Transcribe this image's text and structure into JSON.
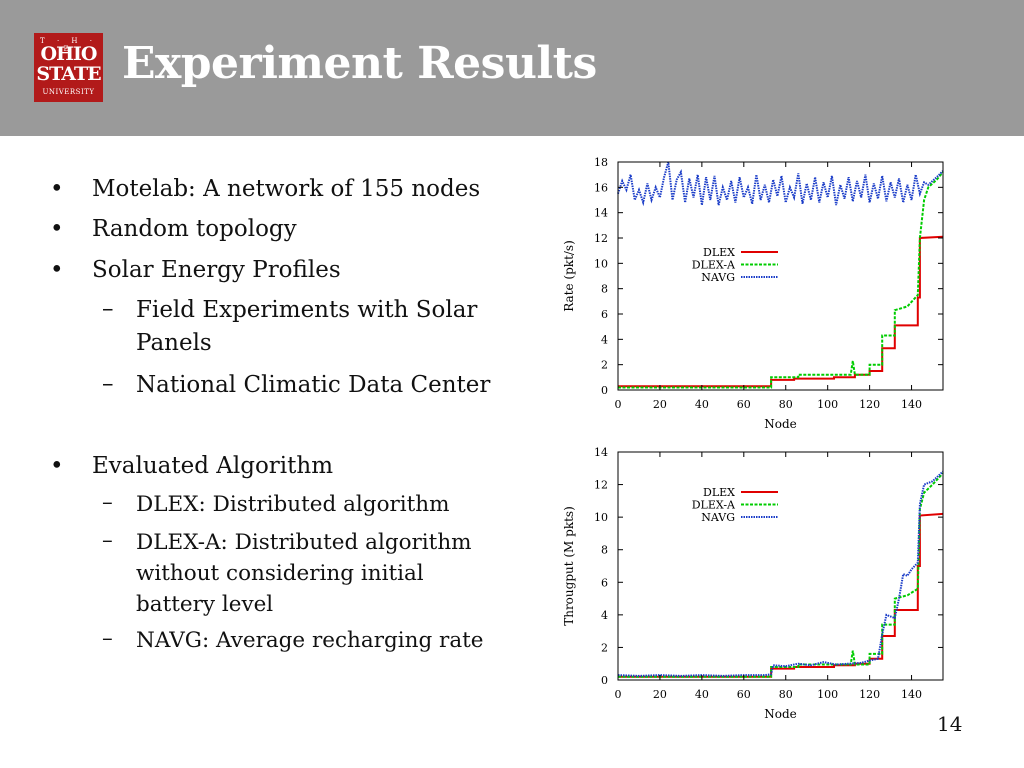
{
  "header": {
    "logo": {
      "line1": "T · H · E",
      "line2": "OHIO",
      "line3": "STATE",
      "line4": "UNIVERSITY"
    },
    "title": "Experiment Results"
  },
  "bullets": [
    {
      "text": "Motelab: A network of 155 nodes"
    },
    {
      "text": "Random topology"
    },
    {
      "text": "Solar Energy Profiles"
    },
    {
      "sub1": "Field Experiments with Solar",
      "sub2": "Panels"
    },
    {
      "text": "National Climatic Data Center"
    },
    {
      "text": "Evaluated Algorithm"
    },
    {
      "text": "DLEX: Distributed algorithm"
    },
    {
      "sub1": "DLEX-A: Distributed algorithm",
      "sub2": "without considering initial",
      "sub3": "battery level"
    },
    {
      "text": "NAVG: Average recharging rate"
    }
  ],
  "bullet_symbol": "•",
  "dash_symbol": "–",
  "page_number": "14",
  "colors": {
    "header": "#9a9a9a",
    "logo": "#b21a1a",
    "dlex": "#e00000",
    "dlexa": "#00cc00",
    "navg": "#1a3cc8"
  },
  "chart_data": [
    {
      "type": "line",
      "xlabel": "Node",
      "ylabel": "Rate (pkt/s)",
      "xlim": [
        0,
        155
      ],
      "ylim": [
        0,
        18
      ],
      "xticks": [
        "0",
        "20",
        "40",
        "60",
        "80",
        "100",
        "120",
        "140"
      ],
      "yticks": [
        "0",
        "2",
        "4",
        "6",
        "8",
        "10",
        "12",
        "14",
        "16",
        "18"
      ],
      "legend": "top-center",
      "series": [
        {
          "name": "DLEX",
          "points": [
            [
              0,
              0.3
            ],
            [
              73,
              0.3
            ],
            [
              73,
              0.8
            ],
            [
              84,
              0.8
            ],
            [
              84,
              0.9
            ],
            [
              103,
              0.9
            ],
            [
              103,
              1.0
            ],
            [
              113,
              1.0
            ],
            [
              113,
              1.2
            ],
            [
              120,
              1.2
            ],
            [
              120,
              1.5
            ],
            [
              126,
              1.5
            ],
            [
              126,
              3.3
            ],
            [
              132,
              3.3
            ],
            [
              132,
              5.1
            ],
            [
              143,
              5.1
            ],
            [
              143,
              7.3
            ],
            [
              144,
              7.3
            ],
            [
              144,
              12.0
            ],
            [
              155,
              12.1
            ]
          ]
        },
        {
          "name": "DLEX-A",
          "points": [
            [
              0,
              0.2
            ],
            [
              73,
              0.2
            ],
            [
              73,
              1.0
            ],
            [
              86,
              1.0
            ],
            [
              86,
              1.2
            ],
            [
              111,
              1.2
            ],
            [
              112,
              2.3
            ],
            [
              113,
              1.2
            ],
            [
              120,
              1.2
            ],
            [
              120,
              2.0
            ],
            [
              126,
              2.0
            ],
            [
              126,
              4.3
            ],
            [
              132,
              4.3
            ],
            [
              132,
              6.3
            ],
            [
              138,
              6.6
            ],
            [
              143,
              7.5
            ],
            [
              144,
              12.0
            ],
            [
              146,
              15.0
            ],
            [
              148,
              16.0
            ],
            [
              152,
              16.6
            ],
            [
              155,
              17.2
            ]
          ]
        },
        {
          "name": "NAVG",
          "points": [
            [
              0,
              15.5
            ],
            [
              2,
              16.5
            ],
            [
              4,
              15.8
            ],
            [
              6,
              17.0
            ],
            [
              8,
              15.0
            ],
            [
              10,
              15.8
            ],
            [
              12,
              14.8
            ],
            [
              14,
              16.3
            ],
            [
              16,
              15.0
            ],
            [
              18,
              16.0
            ],
            [
              20,
              15.2
            ],
            [
              22,
              16.8
            ],
            [
              24,
              18.0
            ],
            [
              26,
              15.0
            ],
            [
              28,
              16.6
            ],
            [
              30,
              17.2
            ],
            [
              32,
              14.8
            ],
            [
              34,
              16.7
            ],
            [
              36,
              15.2
            ],
            [
              38,
              17.0
            ],
            [
              40,
              14.6
            ],
            [
              42,
              16.8
            ],
            [
              44,
              15.0
            ],
            [
              46,
              16.9
            ],
            [
              48,
              14.6
            ],
            [
              50,
              16.0
            ],
            [
              52,
              15.0
            ],
            [
              54,
              16.5
            ],
            [
              56,
              14.8
            ],
            [
              58,
              16.8
            ],
            [
              60,
              15.2
            ],
            [
              62,
              16.0
            ],
            [
              64,
              14.7
            ],
            [
              66,
              17.0
            ],
            [
              68,
              15.0
            ],
            [
              70,
              16.2
            ],
            [
              72,
              14.8
            ],
            [
              74,
              16.6
            ],
            [
              76,
              15.3
            ],
            [
              78,
              16.9
            ],
            [
              80,
              14.8
            ],
            [
              82,
              16.0
            ],
            [
              84,
              15.2
            ],
            [
              86,
              17.1
            ],
            [
              88,
              14.7
            ],
            [
              90,
              16.3
            ],
            [
              92,
              15.0
            ],
            [
              94,
              16.8
            ],
            [
              96,
              14.8
            ],
            [
              98,
              16.4
            ],
            [
              100,
              15.2
            ],
            [
              102,
              16.9
            ],
            [
              104,
              14.6
            ],
            [
              106,
              16.2
            ],
            [
              108,
              15.1
            ],
            [
              110,
              16.8
            ],
            [
              112,
              14.9
            ],
            [
              114,
              16.5
            ],
            [
              116,
              15.2
            ],
            [
              118,
              17.0
            ],
            [
              120,
              14.8
            ],
            [
              122,
              16.3
            ],
            [
              124,
              15.1
            ],
            [
              126,
              16.9
            ],
            [
              128,
              14.9
            ],
            [
              130,
              16.4
            ],
            [
              132,
              15.2
            ],
            [
              134,
              16.7
            ],
            [
              136,
              14.8
            ],
            [
              138,
              16.2
            ],
            [
              140,
              15.0
            ],
            [
              142,
              17.0
            ],
            [
              144,
              15.5
            ],
            [
              146,
              16.4
            ],
            [
              148,
              16.2
            ],
            [
              150,
              16.5
            ],
            [
              152,
              16.8
            ],
            [
              155,
              17.3
            ]
          ]
        }
      ]
    },
    {
      "type": "line",
      "xlabel": "Node",
      "ylabel": "Througput (M pkts)",
      "xlim": [
        0,
        155
      ],
      "ylim": [
        0,
        14
      ],
      "xticks": [
        "0",
        "20",
        "40",
        "60",
        "80",
        "100",
        "120",
        "140"
      ],
      "yticks": [
        "0",
        "2",
        "4",
        "6",
        "8",
        "10",
        "12",
        "14"
      ],
      "legend": "top-center",
      "series": [
        {
          "name": "DLEX",
          "points": [
            [
              0,
              0.2
            ],
            [
              73,
              0.2
            ],
            [
              73,
              0.7
            ],
            [
              84,
              0.7
            ],
            [
              84,
              0.8
            ],
            [
              103,
              0.8
            ],
            [
              103,
              0.9
            ],
            [
              113,
              0.9
            ],
            [
              113,
              1.0
            ],
            [
              120,
              1.0
            ],
            [
              120,
              1.3
            ],
            [
              126,
              1.3
            ],
            [
              126,
              2.7
            ],
            [
              132,
              2.7
            ],
            [
              132,
              4.3
            ],
            [
              143,
              4.3
            ],
            [
              143,
              7.0
            ],
            [
              144,
              7.0
            ],
            [
              144,
              10.1
            ],
            [
              155,
              10.2
            ]
          ]
        },
        {
          "name": "DLEX-A",
          "points": [
            [
              0,
              0.2
            ],
            [
              73,
              0.2
            ],
            [
              73,
              0.8
            ],
            [
              86,
              0.8
            ],
            [
              86,
              0.95
            ],
            [
              111,
              0.95
            ],
            [
              112,
              1.8
            ],
            [
              113,
              0.95
            ],
            [
              120,
              0.95
            ],
            [
              120,
              1.6
            ],
            [
              126,
              1.6
            ],
            [
              126,
              3.4
            ],
            [
              132,
              3.4
            ],
            [
              132,
              5.0
            ],
            [
              138,
              5.2
            ],
            [
              143,
              5.6
            ],
            [
              144,
              10.5
            ],
            [
              146,
              11.5
            ],
            [
              150,
              12.0
            ],
            [
              155,
              12.7
            ]
          ]
        },
        {
          "name": "NAVG",
          "points": [
            [
              0,
              0.3
            ],
            [
              10,
              0.25
            ],
            [
              20,
              0.3
            ],
            [
              30,
              0.25
            ],
            [
              40,
              0.3
            ],
            [
              50,
              0.25
            ],
            [
              60,
              0.3
            ],
            [
              70,
              0.3
            ],
            [
              73,
              0.35
            ],
            [
              74,
              0.9
            ],
            [
              80,
              0.85
            ],
            [
              86,
              1.0
            ],
            [
              92,
              0.9
            ],
            [
              98,
              1.1
            ],
            [
              104,
              0.95
            ],
            [
              110,
              1.0
            ],
            [
              116,
              1.05
            ],
            [
              120,
              1.2
            ],
            [
              124,
              1.3
            ],
            [
              126,
              2.8
            ],
            [
              128,
              4.0
            ],
            [
              132,
              3.8
            ],
            [
              134,
              5.0
            ],
            [
              136,
              6.5
            ],
            [
              138,
              6.4
            ],
            [
              140,
              6.8
            ],
            [
              143,
              7.2
            ],
            [
              144,
              10.8
            ],
            [
              146,
              12.0
            ],
            [
              150,
              12.2
            ],
            [
              155,
              12.8
            ]
          ]
        }
      ]
    }
  ]
}
